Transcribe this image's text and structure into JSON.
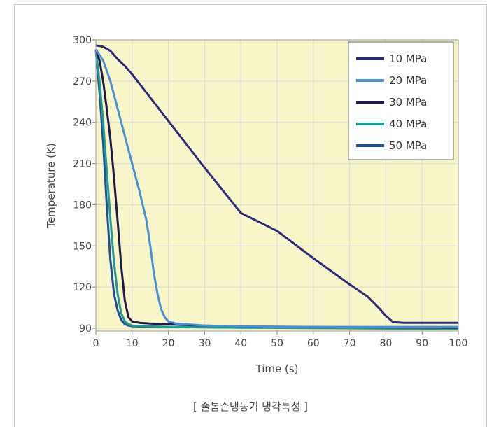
{
  "caption": "[ 줄톰슨냉동기 냉각특성 ]",
  "chart_data": {
    "type": "line",
    "title": "",
    "xlabel": "Time (s)",
    "ylabel": "Temperature (K)",
    "xlim": [
      0,
      100
    ],
    "ylim": [
      88,
      300
    ],
    "xticks": [
      "0",
      "10",
      "20",
      "30",
      "40",
      "50",
      "60",
      "70",
      "80",
      "90",
      "100"
    ],
    "yticks": [
      "300",
      "270",
      "240",
      "210",
      "180",
      "150",
      "120",
      "90"
    ],
    "ytick_values": [
      300,
      270,
      240,
      210,
      180,
      150,
      120,
      90
    ],
    "xtick_values": [
      0,
      10,
      20,
      30,
      40,
      50,
      60,
      70,
      80,
      90,
      100
    ],
    "grid": true,
    "legend_position": "top-right",
    "plot_background": "#f8f5c8",
    "grid_color": "#d8d8d8",
    "series": [
      {
        "name": "10 MPa",
        "color": "#2b2a7a",
        "x": [
          0,
          2,
          4,
          6,
          8,
          10,
          15,
          20,
          30,
          40,
          50,
          60,
          70,
          75,
          78,
          80,
          82,
          85,
          90,
          100
        ],
        "y": [
          296,
          295,
          292,
          286,
          281,
          275,
          258,
          241,
          207,
          174,
          161,
          141,
          122,
          113,
          105,
          99,
          94.5,
          94,
          94,
          94
        ]
      },
      {
        "name": "20 MPa",
        "color": "#4a8fd4",
        "x": [
          0,
          2,
          4,
          6,
          8,
          10,
          12,
          14,
          15,
          16,
          17,
          18,
          19,
          20,
          22,
          25,
          30,
          40,
          60,
          100
        ],
        "y": [
          293,
          285,
          270,
          250,
          230,
          210,
          190,
          168,
          150,
          130,
          115,
          104,
          98,
          95,
          93.5,
          93,
          92,
          91.5,
          91,
          91
        ]
      },
      {
        "name": "30 MPa",
        "color": "#1f1a4a",
        "x": [
          0,
          1,
          2,
          3,
          4,
          5,
          6,
          7,
          8,
          9,
          10,
          12,
          15,
          20,
          30,
          50,
          100
        ],
        "y": [
          293,
          285,
          270,
          250,
          228,
          200,
          168,
          135,
          110,
          98,
          95,
          94,
          93.5,
          93,
          92,
          91,
          90.5
        ]
      },
      {
        "name": "40 MPa",
        "color": "#1e9a94",
        "x": [
          0,
          1,
          2,
          3,
          4,
          5,
          6,
          7,
          8,
          9,
          10,
          15,
          20,
          40,
          100
        ],
        "y": [
          293,
          270,
          240,
          205,
          170,
          138,
          115,
          101,
          95,
          93,
          92,
          91.5,
          91,
          90.5,
          89.5
        ]
      },
      {
        "name": "50 MPa",
        "color": "#1f4f9a",
        "x": [
          0,
          1,
          2,
          3,
          4,
          5,
          6,
          7,
          8,
          9,
          10,
          15,
          20,
          40,
          100
        ],
        "y": [
          292,
          262,
          225,
          180,
          140,
          115,
          103,
          96,
          93,
          92,
          91.5,
          91,
          91,
          90.5,
          90.5
        ]
      }
    ]
  }
}
